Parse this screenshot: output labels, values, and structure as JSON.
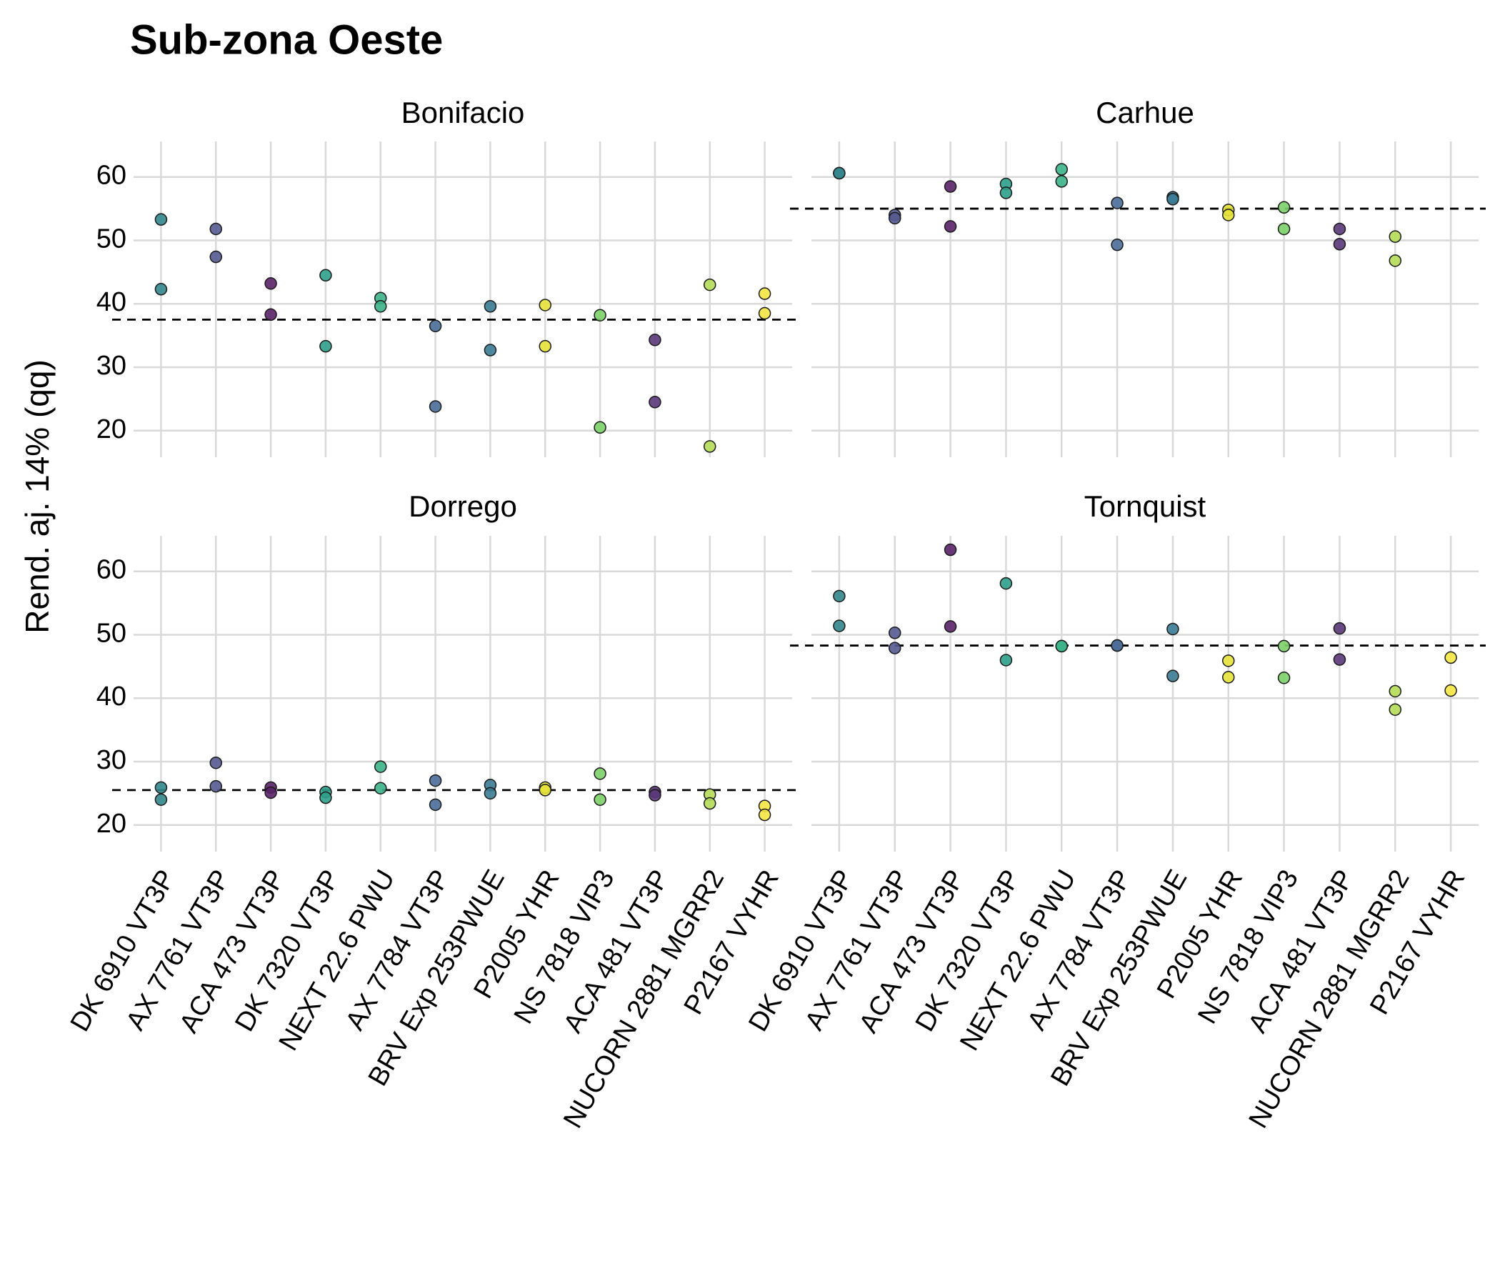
{
  "title": "Sub-zona Oeste",
  "y_label": "Rend. aj. 14% (qq)",
  "categories": [
    "DK 6910 VT3P",
    "AX 7761 VT3P",
    "ACA 473 VT3P",
    "DK 7320 VT3P",
    "NEXT 22.6 PWU",
    "AX 7784 VT3P",
    "BRV Exp 253PWUE",
    "P2005 YHR",
    "NS 7818 VIP3",
    "ACA 481 VT3P",
    "NUCORN 2881 MGRR2",
    "P2167 VYHR"
  ],
  "colors": [
    "#33868c",
    "#555a91",
    "#5a2168",
    "#2ca08a",
    "#3cb48a",
    "#4a6d98",
    "#3b7b93",
    "#e6e23a",
    "#7ed06a",
    "#5a3779",
    "#b5dc57",
    "#f6e543"
  ],
  "ylim": [
    15.8,
    65.6
  ],
  "yticks": [
    20,
    30,
    40,
    50,
    60
  ],
  "grid": true,
  "chart_data": [
    {
      "type": "scatter",
      "title": "Bonifacio",
      "hline": 37.5,
      "values": [
        [
          53.3,
          42.3
        ],
        [
          51.8,
          47.4
        ],
        [
          43.2,
          38.3
        ],
        [
          44.5,
          33.3
        ],
        [
          40.9,
          39.6
        ],
        [
          36.5,
          23.8
        ],
        [
          39.6,
          32.7
        ],
        [
          39.8,
          33.3
        ],
        [
          38.2,
          20.5
        ],
        [
          34.3,
          24.5
        ],
        [
          43,
          17.5
        ],
        [
          41.6,
          38.5
        ]
      ]
    },
    {
      "type": "scatter",
      "title": "Carhue",
      "hline": 55,
      "values": [
        [
          60.6,
          60.6
        ],
        [
          54,
          53.5
        ],
        [
          58.5,
          52.2
        ],
        [
          58.9,
          57.5
        ],
        [
          61.2,
          59.3
        ],
        [
          55.9,
          49.3
        ],
        [
          56.8,
          56.5
        ],
        [
          54.8,
          54
        ],
        [
          55.2,
          51.8
        ],
        [
          51.8,
          49.4
        ],
        [
          50.6,
          46.8
        ],
        [
          null,
          null
        ]
      ]
    },
    {
      "type": "scatter",
      "title": "Dorrego",
      "hline": 25.5,
      "values": [
        [
          25.9,
          24
        ],
        [
          29.8,
          26.1
        ],
        [
          25.9,
          25.1
        ],
        [
          25.2,
          24.3
        ],
        [
          29.2,
          25.8
        ],
        [
          27,
          23.2
        ],
        [
          26.3,
          25
        ],
        [
          25.9,
          25.5
        ],
        [
          28.1,
          24
        ],
        [
          25.2,
          24.7
        ],
        [
          24.8,
          23.4
        ],
        [
          23,
          21.6
        ]
      ]
    },
    {
      "type": "scatter",
      "title": "Tornquist",
      "hline": 48.3,
      "values": [
        [
          56.1,
          51.4
        ],
        [
          50.3,
          47.9
        ],
        [
          63.4,
          51.3
        ],
        [
          58.1,
          46
        ],
        [
          48.2,
          48.2
        ],
        [
          48.3,
          48.3
        ],
        [
          50.9,
          43.5
        ],
        [
          45.9,
          43.3
        ],
        [
          48.2,
          43.2
        ],
        [
          51,
          46.1
        ],
        [
          41.1,
          38.2
        ],
        [
          46.4,
          41.2
        ]
      ]
    }
  ]
}
